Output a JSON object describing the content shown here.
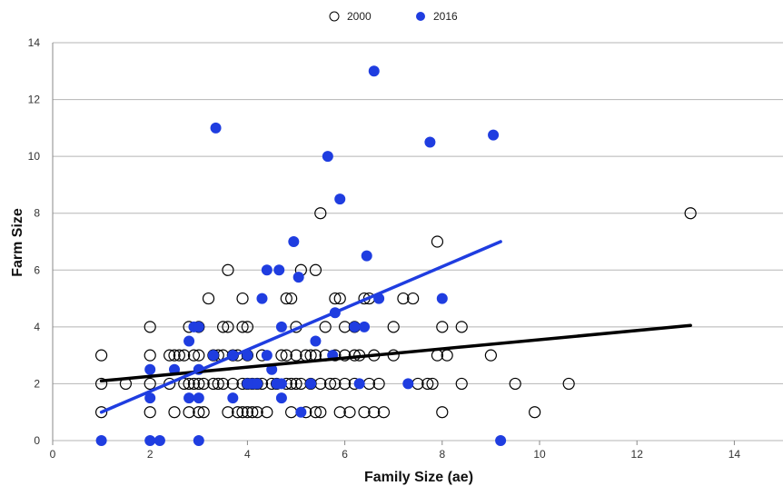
{
  "chart_data": {
    "type": "scatter",
    "xlabel": "Family Size (ae)",
    "ylabel": "Farm Size",
    "xlim": [
      0,
      15
    ],
    "ylim": [
      0,
      14
    ],
    "xticks": [
      0,
      2,
      4,
      6,
      8,
      10,
      12,
      14
    ],
    "yticks": [
      0,
      2,
      4,
      6,
      8,
      10,
      12,
      14
    ],
    "grid": "horizontal",
    "legend_position": "top-center",
    "series": [
      {
        "name": "2000",
        "marker": "open-circle",
        "color": "#000000",
        "points": [
          [
            1,
            3
          ],
          [
            1,
            2
          ],
          [
            1,
            1
          ],
          [
            1.5,
            2
          ],
          [
            2,
            4
          ],
          [
            2,
            3
          ],
          [
            2,
            2
          ],
          [
            2,
            1
          ],
          [
            2.4,
            2
          ],
          [
            2.4,
            3
          ],
          [
            2.5,
            1
          ],
          [
            2.5,
            3
          ],
          [
            2.6,
            3
          ],
          [
            2.7,
            3
          ],
          [
            2.7,
            2
          ],
          [
            2.8,
            4
          ],
          [
            2.8,
            2
          ],
          [
            2.8,
            1
          ],
          [
            2.9,
            3
          ],
          [
            2.9,
            2
          ],
          [
            3,
            4
          ],
          [
            3,
            3
          ],
          [
            3,
            2
          ],
          [
            3,
            1
          ],
          [
            3.1,
            1
          ],
          [
            3.1,
            2
          ],
          [
            3.2,
            5
          ],
          [
            3.3,
            3
          ],
          [
            3.3,
            2
          ],
          [
            3.4,
            3
          ],
          [
            3.4,
            2
          ],
          [
            3.5,
            4
          ],
          [
            3.5,
            3
          ],
          [
            3.5,
            2
          ],
          [
            3.6,
            6
          ],
          [
            3.6,
            4
          ],
          [
            3.6,
            1
          ],
          [
            3.7,
            3
          ],
          [
            3.7,
            2
          ],
          [
            3.8,
            1
          ],
          [
            3.8,
            3
          ],
          [
            3.9,
            5
          ],
          [
            3.9,
            4
          ],
          [
            3.9,
            2
          ],
          [
            3.9,
            1
          ],
          [
            4,
            4
          ],
          [
            4,
            3
          ],
          [
            4,
            2
          ],
          [
            4,
            1
          ],
          [
            4.1,
            2
          ],
          [
            4.1,
            1
          ],
          [
            4.2,
            2
          ],
          [
            4.2,
            1
          ],
          [
            4.3,
            3
          ],
          [
            4.3,
            2
          ],
          [
            4.4,
            1
          ],
          [
            4.5,
            2
          ],
          [
            4.6,
            2
          ],
          [
            4.7,
            3
          ],
          [
            4.8,
            3
          ],
          [
            4.8,
            2
          ],
          [
            4.8,
            5
          ],
          [
            4.9,
            5
          ],
          [
            4.9,
            2
          ],
          [
            4.9,
            1
          ],
          [
            5,
            4
          ],
          [
            5,
            3
          ],
          [
            5,
            2
          ],
          [
            5.1,
            6
          ],
          [
            5.1,
            2
          ],
          [
            5.2,
            3
          ],
          [
            5.2,
            1
          ],
          [
            5.3,
            3
          ],
          [
            5.3,
            2
          ],
          [
            5.4,
            6
          ],
          [
            5.4,
            3
          ],
          [
            5.4,
            1
          ],
          [
            5.5,
            8
          ],
          [
            5.5,
            2
          ],
          [
            5.5,
            1
          ],
          [
            5.6,
            4
          ],
          [
            5.6,
            3
          ],
          [
            5.7,
            2
          ],
          [
            5.8,
            5
          ],
          [
            5.8,
            3
          ],
          [
            5.8,
            2
          ],
          [
            5.9,
            5
          ],
          [
            5.9,
            1
          ],
          [
            6,
            4
          ],
          [
            6,
            3
          ],
          [
            6,
            2
          ],
          [
            6.1,
            1
          ],
          [
            6.2,
            4
          ],
          [
            6.2,
            3
          ],
          [
            6.2,
            2
          ],
          [
            6.3,
            3
          ],
          [
            6.4,
            5
          ],
          [
            6.4,
            1
          ],
          [
            6.5,
            5
          ],
          [
            6.5,
            2
          ],
          [
            6.6,
            3
          ],
          [
            6.6,
            1
          ],
          [
            6.7,
            2
          ],
          [
            6.8,
            1
          ],
          [
            7,
            4
          ],
          [
            7,
            3
          ],
          [
            7.2,
            5
          ],
          [
            7.4,
            5
          ],
          [
            7.5,
            2
          ],
          [
            7.7,
            2
          ],
          [
            7.8,
            2
          ],
          [
            7.9,
            7
          ],
          [
            7.9,
            3
          ],
          [
            8,
            4
          ],
          [
            8,
            1
          ],
          [
            8.1,
            3
          ],
          [
            8.4,
            4
          ],
          [
            8.4,
            2
          ],
          [
            9,
            3
          ],
          [
            9.5,
            2
          ],
          [
            9.9,
            1
          ],
          [
            10.6,
            2
          ],
          [
            13.1,
            8
          ]
        ]
      },
      {
        "name": "2016",
        "marker": "filled-circle",
        "color": "#1f3de0",
        "points": [
          [
            1,
            0
          ],
          [
            2,
            2.5
          ],
          [
            2,
            1.5
          ],
          [
            2,
            0
          ],
          [
            2.2,
            0
          ],
          [
            2.5,
            2.5
          ],
          [
            2.8,
            3.5
          ],
          [
            2.8,
            1.5
          ],
          [
            2.9,
            4
          ],
          [
            3,
            4
          ],
          [
            3,
            2.5
          ],
          [
            3,
            0
          ],
          [
            3,
            1.5
          ],
          [
            3.3,
            3
          ],
          [
            3.35,
            11
          ],
          [
            3.7,
            3
          ],
          [
            3.7,
            1.5
          ],
          [
            4,
            3
          ],
          [
            4,
            2
          ],
          [
            4.1,
            2
          ],
          [
            4.2,
            2
          ],
          [
            4.3,
            5
          ],
          [
            4.4,
            6
          ],
          [
            4.4,
            3
          ],
          [
            4.5,
            2.5
          ],
          [
            4.6,
            2
          ],
          [
            4.65,
            6
          ],
          [
            4.7,
            4
          ],
          [
            4.7,
            2
          ],
          [
            4.7,
            1.5
          ],
          [
            4.95,
            7
          ],
          [
            5.05,
            5.75
          ],
          [
            5.1,
            1
          ],
          [
            5.3,
            2
          ],
          [
            5.4,
            3.5
          ],
          [
            5.65,
            10
          ],
          [
            5.75,
            3
          ],
          [
            5.8,
            4.5
          ],
          [
            5.9,
            8.5
          ],
          [
            6.2,
            4
          ],
          [
            6.3,
            2
          ],
          [
            6.4,
            4
          ],
          [
            6.45,
            6.5
          ],
          [
            6.6,
            13
          ],
          [
            6.7,
            5
          ],
          [
            7.3,
            2
          ],
          [
            7.75,
            10.5
          ],
          [
            8,
            5
          ],
          [
            9.05,
            10.75
          ],
          [
            9.2,
            0
          ]
        ]
      }
    ],
    "trendlines": [
      {
        "series": "2000",
        "color": "#000000",
        "x": [
          1,
          13.1
        ],
        "y": [
          2.1,
          4.05
        ]
      },
      {
        "series": "2016",
        "color": "#1f3de0",
        "x": [
          1,
          9.2
        ],
        "y": [
          1.0,
          7.0
        ]
      }
    ]
  }
}
